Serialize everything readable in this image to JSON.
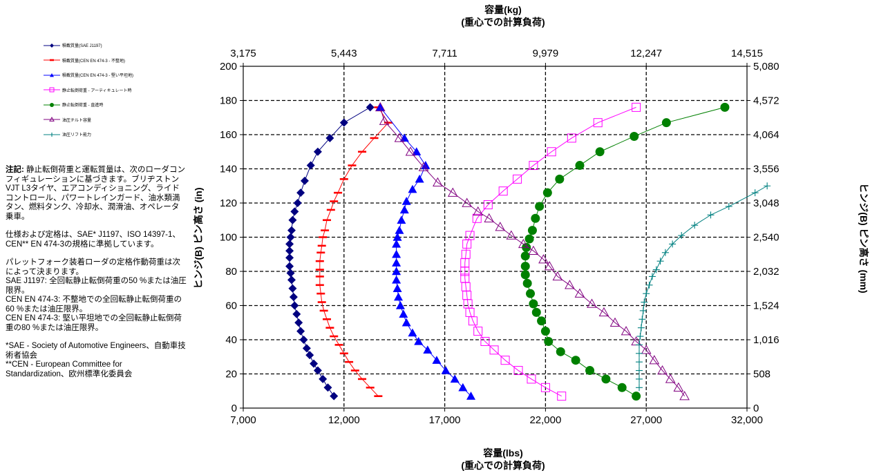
{
  "note": {
    "heading": "注記:",
    "line1": "静止転倒荷重と運転質量は、次のローダコンフィギュレーションに基づきます。ブリヂストンVJT L3タイヤ、エアコンディショニング、ライドコントロール、パワートレインガード、油水類満タン、燃料タンク、冷却水、潤滑油、オペレータ乗車。",
    "para2": "仕様および定格は、SAE* J1197、ISO 14397-1、CEN** EN 474-3の規格に準拠しています。",
    "para3_lines": [
      "パレットフォーク装着ローダの定格作動荷重は次によって決まります。",
      "SAE J1197: 全回転静止転倒荷重の50 %または油圧限界。",
      "CEN EN 474-3: 不整地での全回転静止転倒荷重の60 %または油圧限界。",
      "CEN EN 474-3: 堅い平坦地での全回転静止転倒荷重の80 %または油圧限界。"
    ],
    "footnote_lines": [
      "*SAE - Society of Automotive Engineers、自動車技術者協会",
      "**CEN - European Committee for Standardization、欧州標準化委員会"
    ]
  },
  "chart_data": {
    "type": "scatter",
    "xlabel": "容量(lbs)",
    "xlabel2": "(重心での計算負荷)",
    "x2label": "容量(kg)",
    "x2label2": "(重心での計算負荷)",
    "ylabel": "ヒンジ(B) ピン高さ (in)",
    "y2label": "ヒンジ(B) ピン高さ (mm)",
    "xlim": [
      7000,
      32000
    ],
    "ylim": [
      0,
      200
    ],
    "x_ticks": [
      "7,000",
      "12,000",
      "17,000",
      "22,000",
      "27,000",
      "32,000"
    ],
    "y_ticks": [
      "0",
      "20",
      "40",
      "60",
      "80",
      "100",
      "120",
      "140",
      "160",
      "180",
      "200"
    ],
    "x2_ticks": [
      "3,175",
      "5,443",
      "7,711",
      "9,979",
      "12,247",
      "14,515"
    ],
    "y2_ticks": [
      "0",
      "508",
      "1,016",
      "1,524",
      "2,032",
      "2,540",
      "3,048",
      "3,556",
      "4,064",
      "4,572",
      "5,080"
    ],
    "grid": true,
    "legend_position": "top-left",
    "series": [
      {
        "name": "積載質量(SAE J1197)",
        "color": "#000080",
        "marker": "diamond",
        "points": [
          [
            11500,
            7
          ],
          [
            11200,
            12
          ],
          [
            10950,
            17
          ],
          [
            10700,
            22
          ],
          [
            10500,
            26
          ],
          [
            10300,
            31
          ],
          [
            10150,
            35
          ],
          [
            10000,
            40
          ],
          [
            9850,
            45
          ],
          [
            9750,
            50
          ],
          [
            9650,
            55
          ],
          [
            9550,
            60
          ],
          [
            9500,
            65
          ],
          [
            9450,
            70
          ],
          [
            9400,
            75
          ],
          [
            9350,
            79
          ],
          [
            9300,
            83
          ],
          [
            9300,
            88
          ],
          [
            9300,
            92
          ],
          [
            9300,
            96
          ],
          [
            9350,
            100
          ],
          [
            9400,
            104
          ],
          [
            9450,
            110
          ],
          [
            9550,
            115
          ],
          [
            9700,
            120
          ],
          [
            9850,
            126
          ],
          [
            10050,
            133
          ],
          [
            10350,
            142
          ],
          [
            10700,
            150
          ],
          [
            11300,
            158
          ],
          [
            12000,
            167
          ],
          [
            13300,
            176
          ]
        ]
      },
      {
        "name": "積載質量(CEN EN 474-3 - 不整地)",
        "color": "#ff0000",
        "marker": "dash",
        "points": [
          [
            13700,
            7
          ],
          [
            13300,
            12
          ],
          [
            12900,
            17
          ],
          [
            12550,
            22
          ],
          [
            12250,
            27
          ],
          [
            12000,
            32
          ],
          [
            11750,
            37
          ],
          [
            11500,
            42
          ],
          [
            11300,
            47
          ],
          [
            11150,
            52
          ],
          [
            11000,
            57
          ],
          [
            10900,
            62
          ],
          [
            10850,
            67
          ],
          [
            10800,
            72
          ],
          [
            10800,
            77
          ],
          [
            10800,
            81
          ],
          [
            10800,
            86
          ],
          [
            10850,
            91
          ],
          [
            10900,
            95
          ],
          [
            10950,
            100
          ],
          [
            11050,
            104
          ],
          [
            11150,
            110
          ],
          [
            11350,
            116
          ],
          [
            11500,
            121
          ],
          [
            11700,
            126
          ],
          [
            12000,
            134
          ],
          [
            12400,
            142
          ],
          [
            12900,
            150
          ],
          [
            13500,
            158
          ],
          [
            14200,
            167
          ],
          [
            13700,
            176
          ]
        ]
      },
      {
        "name": "積載質量(CEN EN 474-3 - 堅い平坦地)",
        "color": "#0000ff",
        "marker": "triangle",
        "points": [
          [
            18300,
            7
          ],
          [
            17900,
            12
          ],
          [
            17500,
            17
          ],
          [
            17050,
            22
          ],
          [
            16600,
            28
          ],
          [
            16150,
            34
          ],
          [
            15700,
            39
          ],
          [
            15400,
            44
          ],
          [
            15100,
            50
          ],
          [
            14950,
            55
          ],
          [
            14800,
            60
          ],
          [
            14700,
            65
          ],
          [
            14650,
            70
          ],
          [
            14600,
            75
          ],
          [
            14600,
            80
          ],
          [
            14600,
            85
          ],
          [
            14600,
            90
          ],
          [
            14600,
            96
          ],
          [
            14650,
            100
          ],
          [
            14750,
            104
          ],
          [
            14850,
            110
          ],
          [
            15000,
            116
          ],
          [
            15100,
            121
          ],
          [
            15400,
            128
          ],
          [
            15750,
            134
          ],
          [
            16050,
            142
          ],
          [
            15600,
            150
          ],
          [
            15000,
            158
          ],
          [
            13800,
            176
          ]
        ]
      },
      {
        "name": "静止転倒荷重 - アーティキュレート時",
        "color": "#ff00ff",
        "marker": "square",
        "points": [
          [
            22800,
            7
          ],
          [
            22000,
            12
          ],
          [
            21300,
            17
          ],
          [
            20650,
            22
          ],
          [
            20000,
            28
          ],
          [
            19450,
            34
          ],
          [
            19000,
            39
          ],
          [
            18650,
            45
          ],
          [
            18400,
            51
          ],
          [
            18250,
            56
          ],
          [
            18150,
            61
          ],
          [
            18100,
            66
          ],
          [
            18050,
            71
          ],
          [
            18000,
            76
          ],
          [
            18000,
            80
          ],
          [
            18000,
            85
          ],
          [
            18050,
            90
          ],
          [
            18100,
            96
          ],
          [
            18250,
            101
          ],
          [
            18600,
            111
          ],
          [
            19150,
            119
          ],
          [
            19900,
            127
          ],
          [
            20600,
            134
          ],
          [
            21400,
            142
          ],
          [
            22300,
            150
          ],
          [
            23300,
            158
          ],
          [
            24600,
            167
          ],
          [
            26500,
            176
          ]
        ]
      },
      {
        "name": "静止転倒荷重 - 直進時",
        "color": "#008000",
        "marker": "circle",
        "points": [
          [
            26500,
            7
          ],
          [
            25800,
            12
          ],
          [
            25000,
            17
          ],
          [
            24200,
            22
          ],
          [
            23500,
            28
          ],
          [
            22750,
            33
          ],
          [
            22150,
            39
          ],
          [
            22000,
            45
          ],
          [
            21800,
            51
          ],
          [
            21550,
            56
          ],
          [
            21400,
            61
          ],
          [
            21250,
            67
          ],
          [
            21100,
            73
          ],
          [
            21000,
            78
          ],
          [
            21000,
            83
          ],
          [
            21000,
            89
          ],
          [
            21050,
            94
          ],
          [
            21200,
            99
          ],
          [
            21350,
            104
          ],
          [
            21500,
            111
          ],
          [
            21700,
            118
          ],
          [
            22100,
            126
          ],
          [
            22700,
            134
          ],
          [
            23700,
            142
          ],
          [
            24700,
            150
          ],
          [
            26400,
            159
          ],
          [
            28000,
            167
          ],
          [
            30900,
            176
          ]
        ]
      },
      {
        "name": "油圧チルト容量",
        "color": "#800080",
        "marker": "triangle-open",
        "points": [
          [
            28900,
            7
          ],
          [
            28600,
            12
          ],
          [
            28200,
            17
          ],
          [
            27800,
            22
          ],
          [
            27400,
            28
          ],
          [
            27000,
            34
          ],
          [
            26500,
            39
          ],
          [
            26000,
            45
          ],
          [
            25450,
            50
          ],
          [
            24900,
            56
          ],
          [
            24300,
            61
          ],
          [
            23700,
            67
          ],
          [
            23200,
            72
          ],
          [
            22600,
            77
          ],
          [
            22200,
            83
          ],
          [
            21900,
            87
          ],
          [
            21400,
            92
          ],
          [
            20900,
            96
          ],
          [
            20300,
            101
          ],
          [
            19750,
            106
          ],
          [
            19200,
            111
          ],
          [
            18650,
            115
          ],
          [
            18100,
            120
          ],
          [
            17400,
            126
          ],
          [
            16650,
            132
          ],
          [
            15950,
            141
          ],
          [
            15300,
            150
          ],
          [
            14750,
            158
          ],
          [
            14000,
            168
          ],
          [
            13800,
            176
          ]
        ]
      },
      {
        "name": "油圧リフト能力",
        "color": "#008080",
        "marker": "plus",
        "points": [
          [
            26650,
            12
          ],
          [
            26650,
            17
          ],
          [
            26650,
            22
          ],
          [
            26650,
            27
          ],
          [
            26650,
            32
          ],
          [
            26650,
            37
          ],
          [
            26700,
            42
          ],
          [
            26750,
            47
          ],
          [
            26800,
            52
          ],
          [
            26850,
            57
          ],
          [
            26900,
            62
          ],
          [
            27000,
            67
          ],
          [
            27150,
            72
          ],
          [
            27300,
            77
          ],
          [
            27500,
            81
          ],
          [
            27700,
            86
          ],
          [
            27950,
            91
          ],
          [
            28300,
            96
          ],
          [
            28750,
            101
          ],
          [
            29400,
            107
          ],
          [
            30200,
            113
          ],
          [
            31100,
            118
          ],
          [
            32400,
            126
          ],
          [
            33000,
            130
          ]
        ]
      }
    ]
  },
  "legend": [
    {
      "label": "積載質量(SAE J1197)"
    },
    {
      "label": "積載質量(CEN EN 474-3 - 不整地)"
    },
    {
      "label": "積載質量(CEN EN 474-3 - 堅い平坦地)"
    },
    {
      "label": "静止転倒荷重 - アーティキュレート時"
    },
    {
      "label": "静止転倒荷重 - 直進時"
    },
    {
      "label": "油圧チルト容量"
    },
    {
      "label": "油圧リフト能力"
    }
  ]
}
